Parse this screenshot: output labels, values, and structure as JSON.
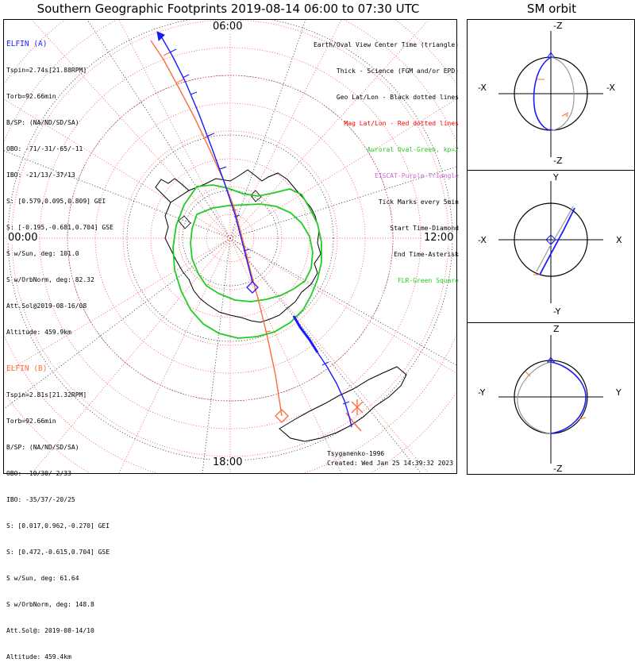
{
  "title": "Southern Geographic Footprints 2019-08-14 06:00 to 07:30 UTC",
  "sm_title": "SM orbit",
  "clock_labels": {
    "top": "06:00",
    "left": "00:00",
    "right": "12:00",
    "bottom": "18:00"
  },
  "elfin_a": {
    "header": "ELFIN (A)",
    "color": "#1a1aff",
    "lines": [
      "Tspin=2.74s[21.88RPM]",
      "Torb=92.66min",
      "B/SP: (NA/ND/SD/SA)",
      "OBO: -71/-31/-65/-11",
      "IBO: -21/13/-37/13",
      "S: [0.579,0.095,0.809] GEI",
      "S: [-0.195,-0.681,0.704] GSE",
      "S w/Sun, deg: 101.0",
      "S w/OrbNorm, deg: 82.32",
      "Att.Sol@2019-08-16/08",
      "Altitude: 459.9km"
    ]
  },
  "elfin_b": {
    "header": "ELFIN (B)",
    "color": "#ff6a3d",
    "lines": [
      "Tspin=2.81s[21.32RPM]",
      "Torb=92.66min",
      "B/SP: (NA/ND/SD/SA)",
      "OBO: -10/30/-2/33",
      "IBO: -35/37/-20/25",
      "S: [0.017,0.962,-0.270] GEI",
      "S: [0.472,-0.615,0.704] GSE",
      "S w/Sun, deg: 61.64",
      "S w/OrbNorm, deg: 148.8",
      "Att.Sol@: 2019-08-14/10",
      "Altitude: 459.4km"
    ]
  },
  "legend": [
    {
      "text": "Earth/Oval View Center Time (triangle)",
      "color": "#000000"
    },
    {
      "text": "Thick - Science (FGM and/or EPD)",
      "color": "#000000"
    },
    {
      "text": "Geo Lat/Lon - Black dotted lines",
      "color": "#000000"
    },
    {
      "text": "Mag Lat/Lon - Red dotted lines",
      "color": "#ff0000"
    },
    {
      "text": "Auroral Oval-Green, kp=2",
      "color": "#22cc22"
    },
    {
      "text": "EISCAT-Purple Triangle",
      "color": "#cc66cc"
    },
    {
      "text": "Tick Marks every 5min",
      "color": "#000000"
    },
    {
      "text": "Start Time-Diamond",
      "color": "#000000"
    },
    {
      "text": "End Time-Asterisk",
      "color": "#000000"
    },
    {
      "text": "FLR-Green Square",
      "color": "#22cc22"
    }
  ],
  "credits": {
    "model": "Tsyganenko-1996",
    "created": "Created: Wed Jan 25 14:39:32 2023"
  },
  "sm_panels": [
    {
      "top": "-Z",
      "bottom": "-Z",
      "left": "-X",
      "right": "-X"
    },
    {
      "top": "Y",
      "bottom": "-Y",
      "left": "-X",
      "right": "X"
    },
    {
      "top": "Z",
      "bottom": "-Z",
      "left": "-Y",
      "right": "Y"
    }
  ],
  "colors": {
    "elfin_a": "#1a1aff",
    "elfin_b": "#ff6a3d",
    "oval": "#22cc22",
    "mag_grid": "#ff3333",
    "geo_grid": "#000000"
  },
  "chart_data": {
    "type": "scatter",
    "projection": "south polar azimuthal",
    "series": [
      {
        "name": "ELFIN (A)",
        "track": "footprint",
        "start_marker": "diamond"
      },
      {
        "name": "ELFIN (B)",
        "track": "footprint",
        "start_marker": "diamond",
        "end_marker": "asterisk"
      }
    ],
    "auroral_oval_kp": 2
  }
}
